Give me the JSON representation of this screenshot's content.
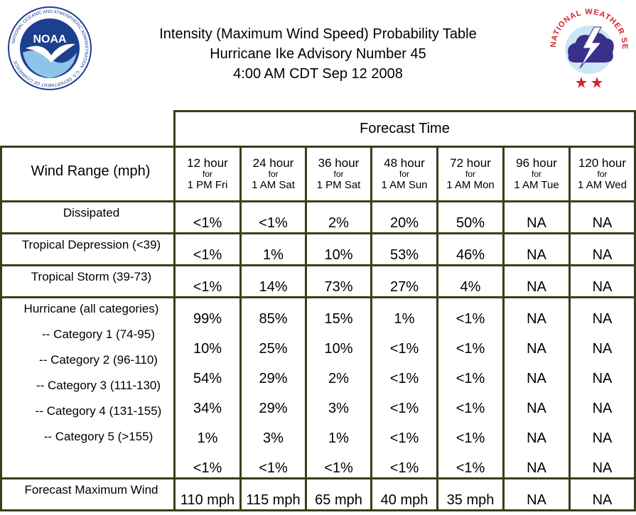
{
  "header": {
    "title_line1": "Intensity (Maximum Wind Speed) Probability Table",
    "title_line2": "Hurricane Ike Advisory Number 45",
    "title_line3": "4:00 AM CDT Sep 12 2008"
  },
  "logos": {
    "noaa": {
      "text": "NOAA",
      "ring_text": "NATIONAL OCEANIC AND ATMOSPHERIC ADMINISTRATION · U.S. DEPARTMENT OF COMMERCE"
    },
    "nws": {
      "ring_text": "NATIONAL WEATHER SERVICE"
    }
  },
  "table": {
    "forecast_time_label": "Forecast Time",
    "wind_range_label": "Wind Range (mph)",
    "columns": [
      {
        "hours": "12 hour",
        "for": "for",
        "when": "1 PM Fri"
      },
      {
        "hours": "24 hour",
        "for": "for",
        "when": "1 AM Sat"
      },
      {
        "hours": "36 hour",
        "for": "for",
        "when": "1 PM Sat"
      },
      {
        "hours": "48 hour",
        "for": "for",
        "when": "1 AM Sun"
      },
      {
        "hours": "72 hour",
        "for": "for",
        "when": "1 AM Mon"
      },
      {
        "hours": "96 hour",
        "for": "for",
        "when": "1 AM Tue"
      },
      {
        "hours": "120 hour",
        "for": "for",
        "when": "1 AM Wed"
      }
    ],
    "groups": [
      {
        "rows": [
          {
            "label": "Dissipated",
            "values": [
              "<1%",
              "<1%",
              "2%",
              "20%",
              "50%",
              "NA",
              "NA"
            ]
          }
        ]
      },
      {
        "rows": [
          {
            "label": "Tropical Depression (<39)",
            "values": [
              "<1%",
              "1%",
              "10%",
              "53%",
              "46%",
              "NA",
              "NA"
            ]
          }
        ]
      },
      {
        "rows": [
          {
            "label": "Tropical Storm (39-73)",
            "values": [
              "<1%",
              "14%",
              "73%",
              "27%",
              "4%",
              "NA",
              "NA"
            ]
          }
        ]
      },
      {
        "rows": [
          {
            "label": "Hurricane (all categories)",
            "values": [
              "99%",
              "85%",
              "15%",
              "1%",
              "<1%",
              "NA",
              "NA"
            ]
          },
          {
            "label": "-- Category 1 (74-95)",
            "values": [
              "10%",
              "25%",
              "10%",
              "<1%",
              "<1%",
              "NA",
              "NA"
            ]
          },
          {
            "label": "-- Category 2 (96-110)",
            "values": [
              "54%",
              "29%",
              "2%",
              "<1%",
              "<1%",
              "NA",
              "NA"
            ]
          },
          {
            "label": "-- Category 3 (111-130)",
            "values": [
              "34%",
              "29%",
              "3%",
              "<1%",
              "<1%",
              "NA",
              "NA"
            ]
          },
          {
            "label": "-- Category 4 (131-155)",
            "values": [
              "1%",
              "3%",
              "1%",
              "<1%",
              "<1%",
              "NA",
              "NA"
            ]
          },
          {
            "label": "-- Category 5 (>155)",
            "values": [
              "<1%",
              "<1%",
              "<1%",
              "<1%",
              "<1%",
              "NA",
              "NA"
            ]
          }
        ]
      },
      {
        "rows": [
          {
            "label": "Forecast Maximum Wind",
            "values": [
              "110 mph",
              "115 mph",
              "65 mph",
              "40 mph",
              "35 mph",
              "NA",
              "NA"
            ]
          }
        ]
      }
    ]
  },
  "colors": {
    "border": "#3c3c1e",
    "noaa_blue": "#1d3f8f",
    "nws_red": "#d4232b"
  }
}
